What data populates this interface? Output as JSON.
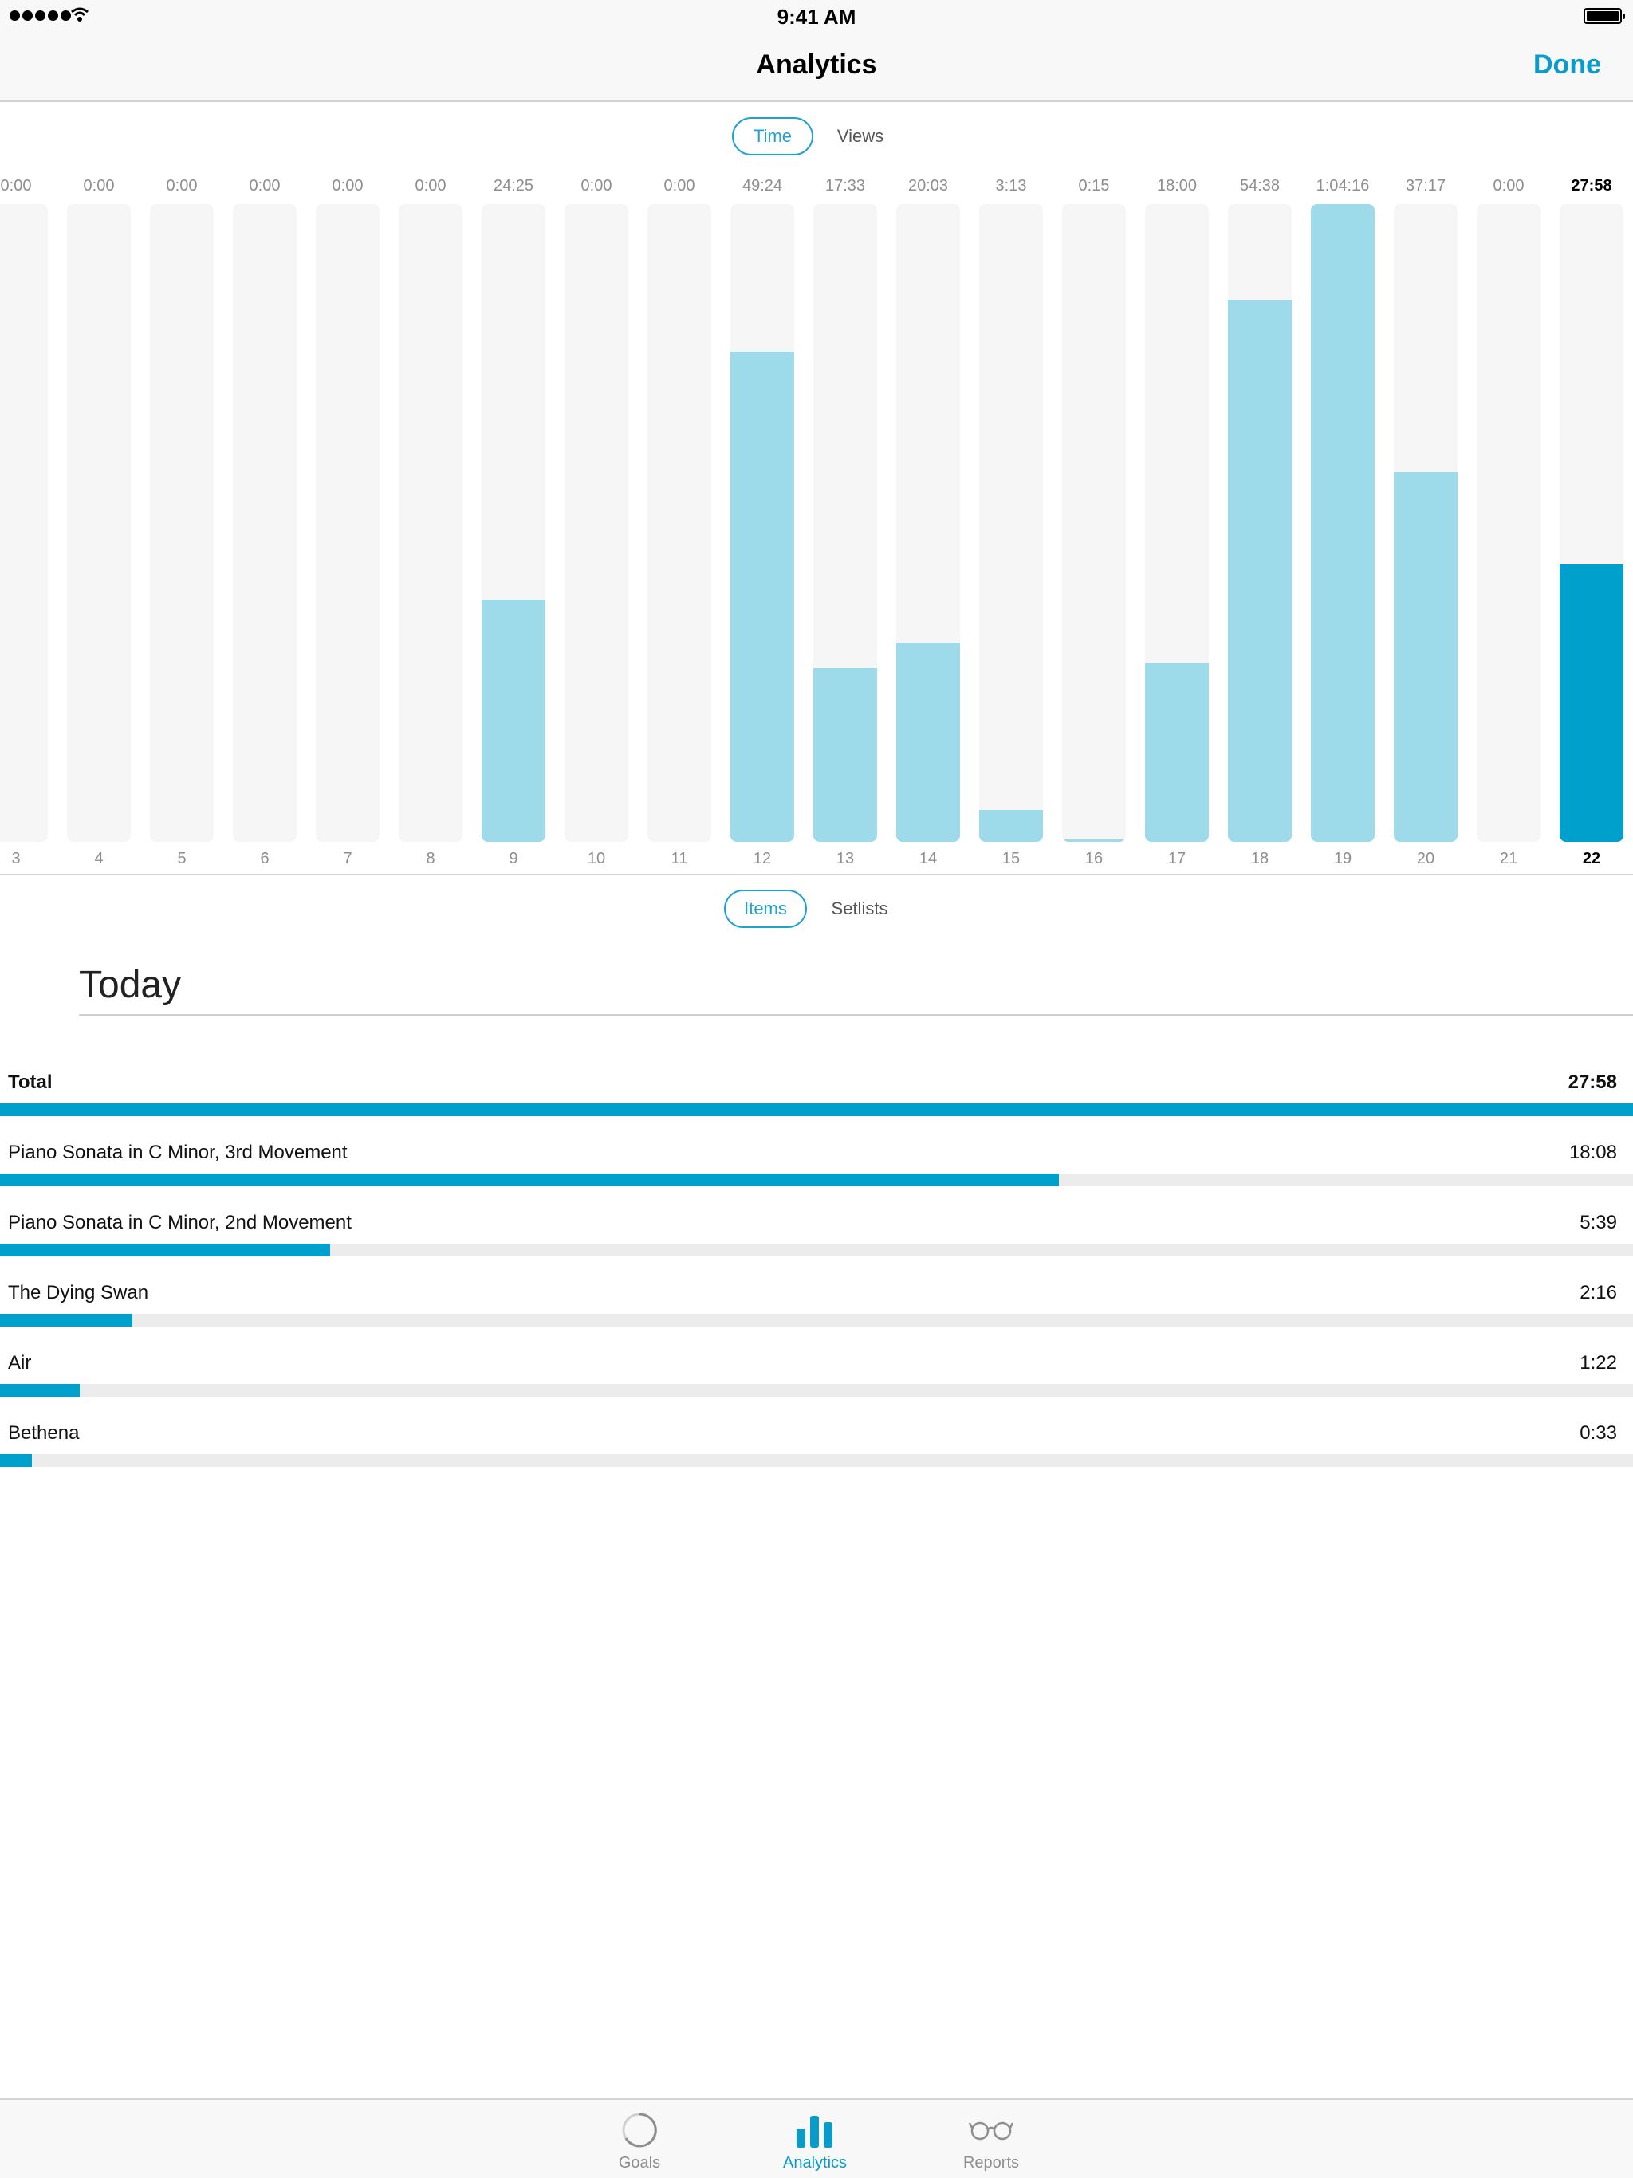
{
  "status_bar": {
    "time": "9:41 AM"
  },
  "nav": {
    "title": "Analytics",
    "done_label": "Done"
  },
  "metric_toggle": {
    "selected": "Time",
    "other": "Views"
  },
  "group_toggle": {
    "selected": "Items",
    "other": "Setlists"
  },
  "chart_data": {
    "type": "bar",
    "categories": [
      "3",
      "4",
      "5",
      "6",
      "7",
      "8",
      "9",
      "10",
      "11",
      "12",
      "13",
      "14",
      "15",
      "16",
      "17",
      "18",
      "19",
      "20",
      "21",
      "22"
    ],
    "value_labels": [
      "0:00",
      "0:00",
      "0:00",
      "0:00",
      "0:00",
      "0:00",
      "24:25",
      "0:00",
      "0:00",
      "49:24",
      "17:33",
      "20:03",
      "3:13",
      "0:15",
      "18:00",
      "54:38",
      "1:04:16",
      "37:17",
      "0:00",
      "27:58"
    ],
    "values_seconds": [
      0,
      0,
      0,
      0,
      0,
      0,
      1465,
      0,
      0,
      2964,
      1053,
      1203,
      193,
      15,
      1080,
      3278,
      3856,
      2237,
      0,
      1678
    ],
    "ylim": [
      0,
      3856
    ],
    "highlighted_category": "22",
    "colors": {
      "bar": "#9ddaea",
      "highlight": "#00a0cc",
      "track": "#f6f6f6"
    }
  },
  "section": {
    "title": "Today"
  },
  "rows": [
    {
      "label": "Total",
      "value": "27:58",
      "fraction": 1.0,
      "bold": true
    },
    {
      "label": "Piano Sonata in C Minor, 3rd Movement",
      "value": "18:08",
      "fraction": 0.6484
    },
    {
      "label": "Piano Sonata in C Minor, 2nd Movement",
      "value": "5:39",
      "fraction": 0.2021
    },
    {
      "label": "The Dying Swan",
      "value": "2:16",
      "fraction": 0.0811
    },
    {
      "label": "Air",
      "value": "1:22",
      "fraction": 0.0489
    },
    {
      "label": "Bethena",
      "value": "0:33",
      "fraction": 0.0197
    }
  ],
  "tabs": [
    {
      "label": "Goals",
      "icon": "progress-ring-icon",
      "active": false
    },
    {
      "label": "Analytics",
      "icon": "bar-chart-icon",
      "active": true
    },
    {
      "label": "Reports",
      "icon": "glasses-icon",
      "active": false
    }
  ],
  "colors": {
    "accent": "#0a9bc9",
    "progress_fill": "#00a0cc",
    "progress_track": "#ececec"
  }
}
